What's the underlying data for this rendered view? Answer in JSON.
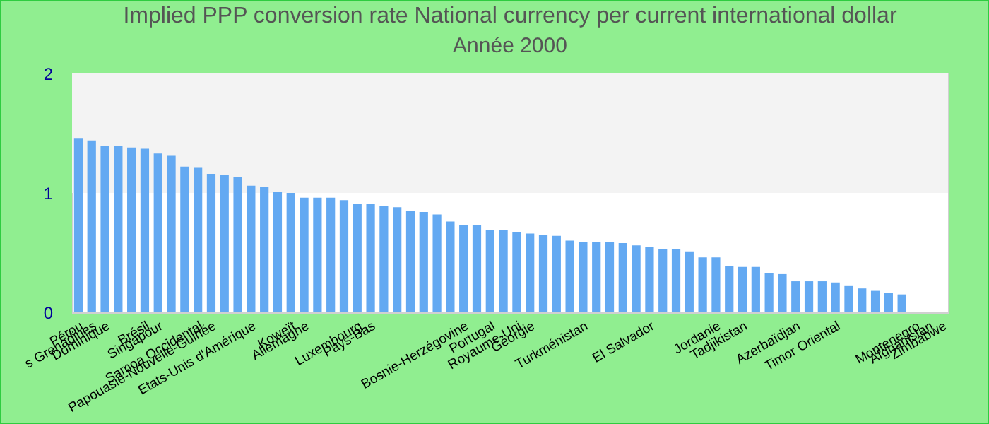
{
  "chart_data": {
    "type": "bar",
    "title": "Implied PPP conversion rate  National currency per current international dollar",
    "subtitle": "Année 2000",
    "categories": [
      "Pérou",
      "s Grenadines",
      "Dominique",
      null,
      null,
      "Brésil",
      "Singapour",
      null,
      null,
      "Samoa Occidental",
      "Papouasie-Nouvelle-Guinée",
      null,
      null,
      "Etats-Unis d'Amérique",
      null,
      null,
      "Koweït",
      "Allemagne",
      null,
      null,
      null,
      "Luxembourg",
      "Pays-Bas",
      null,
      null,
      null,
      null,
      null,
      null,
      "Bosnie-Herzégovine",
      null,
      "Portugal",
      null,
      "Royaume-Uni",
      "Géorgie",
      null,
      null,
      null,
      "Turkménistan",
      null,
      null,
      null,
      null,
      "El Salvador",
      null,
      null,
      null,
      null,
      "Jordanie",
      null,
      "Tadjikistan",
      null,
      null,
      null,
      "Azerbaïdjan",
      null,
      null,
      "Timor Oriental",
      null,
      null,
      null,
      null,
      null,
      "Montenegro",
      "Afghanistan",
      "Zimbabwe"
    ],
    "values": [
      1.46,
      1.44,
      1.39,
      1.39,
      1.38,
      1.37,
      1.33,
      1.31,
      1.22,
      1.21,
      1.16,
      1.15,
      1.13,
      1.06,
      1.05,
      1.01,
      1.0,
      0.96,
      0.96,
      0.96,
      0.94,
      0.91,
      0.91,
      0.89,
      0.88,
      0.85,
      0.84,
      0.82,
      0.76,
      0.73,
      0.73,
      0.69,
      0.69,
      0.67,
      0.66,
      0.65,
      0.64,
      0.6,
      0.59,
      0.59,
      0.59,
      0.58,
      0.56,
      0.55,
      0.53,
      0.53,
      0.51,
      0.46,
      0.46,
      0.39,
      0.38,
      0.38,
      0.33,
      0.32,
      0.26,
      0.26,
      0.26,
      0.25,
      0.22,
      0.2,
      0.18,
      0.16,
      0.15,
      null,
      null,
      null
    ],
    "color": "#63a9f2",
    "ylim": [
      0,
      2
    ],
    "yticks": [
      0,
      1,
      2
    ],
    "grid": false,
    "bands": [
      {
        "axis": "y",
        "from": 1,
        "to": 2,
        "color": "#f3f3f3"
      }
    ]
  }
}
